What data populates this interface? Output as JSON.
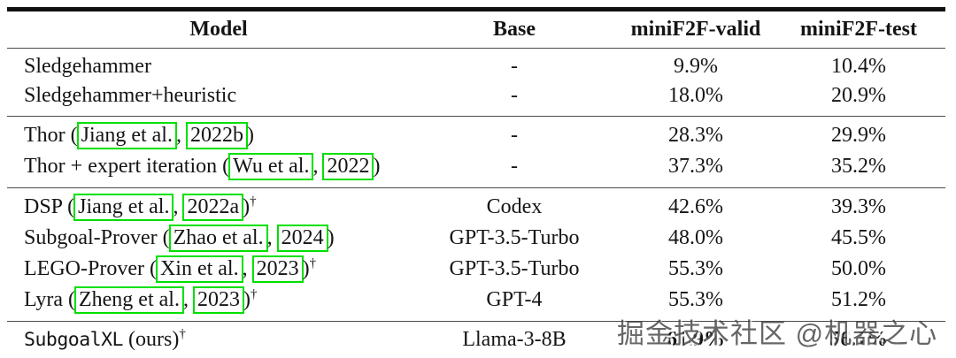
{
  "colors": {
    "citation_box": "#00e000",
    "thick_rule": "#111111",
    "thin_rule": "#4a4a4a"
  },
  "watermark": {
    "text": "掘金技术社区 @机器之心"
  },
  "table": {
    "headers": [
      {
        "key": "model",
        "label": "Model"
      },
      {
        "key": "base",
        "label": "Base"
      },
      {
        "key": "valid",
        "label": "miniF2F-valid"
      },
      {
        "key": "test",
        "label": "miniF2F-test"
      }
    ],
    "sections": [
      {
        "rows": [
          {
            "model": {
              "before": "Sledgehammer"
            },
            "base": "-",
            "valid": "9.9%",
            "test": "10.4%"
          },
          {
            "model": {
              "before": "Sledgehammer+heuristic"
            },
            "base": "-",
            "valid": "18.0%",
            "test": "20.9%"
          }
        ]
      },
      {
        "rows": [
          {
            "model": {
              "before": "Thor (",
              "author": "Jiang et al.",
              "sep": ", ",
              "year": "2022b",
              "after": ")"
            },
            "base": "-",
            "valid": "28.3%",
            "test": "29.9%"
          },
          {
            "model": {
              "before": "Thor + expert iteration (",
              "author": "Wu et al.",
              "sep": ", ",
              "year": "2022",
              "after": ")"
            },
            "base": "-",
            "valid": "37.3%",
            "test": "35.2%"
          }
        ]
      },
      {
        "rows": [
          {
            "model": {
              "before": "DSP (",
              "author": "Jiang et al.",
              "sep": ", ",
              "year": "2022a",
              "after": ")",
              "dagger": "†"
            },
            "base": "Codex",
            "valid": "42.6%",
            "test": "39.3%"
          },
          {
            "model": {
              "before": "Subgoal-Prover (",
              "author": "Zhao et al.",
              "sep": ", ",
              "year": "2024",
              "after": ")"
            },
            "base": "GPT-3.5-Turbo",
            "valid": "48.0%",
            "test": "45.5%"
          },
          {
            "model": {
              "before": "LEGO-Prover (",
              "author": "Xin et al.",
              "sep": ", ",
              "year": "2023",
              "after": ")",
              "dagger": "†"
            },
            "base": "GPT-3.5-Turbo",
            "valid": "55.3%",
            "test": "50.0%"
          },
          {
            "model": {
              "before": "Lyra (",
              "author": "Zheng et al.",
              "sep": ", ",
              "year": "2023",
              "after": ")",
              "dagger": "†"
            },
            "base": "GPT-4",
            "valid": "55.3%",
            "test": "51.2%"
          }
        ]
      },
      {
        "rows": [
          {
            "model": {
              "mono": "SubgoalXL",
              "after": " (ours)",
              "dagger": "†"
            },
            "base": "Llama-3-8B",
            "valid": "61.9%",
            "test": "56.1%",
            "bold": true
          }
        ]
      }
    ]
  }
}
